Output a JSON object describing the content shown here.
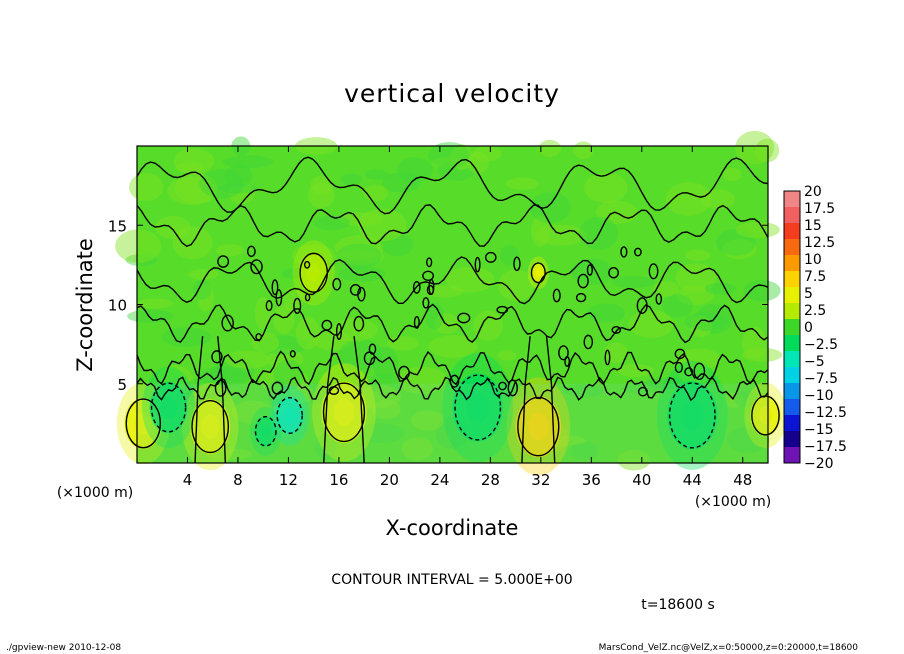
{
  "chart_data": {
    "type": "heatmap",
    "title": "vertical velocity",
    "xlabel": "X-coordinate",
    "ylabel": "Z-coordinate",
    "x_unit": "(×1000 m)",
    "y_unit": "(×1000 m)",
    "xlim": [
      0,
      50
    ],
    "ylim": [
      0,
      20
    ],
    "x_ticks": [
      "4",
      "8",
      "12",
      "16",
      "20",
      "24",
      "28",
      "32",
      "36",
      "40",
      "44",
      "48"
    ],
    "y_ticks": [
      "5",
      "10",
      "15"
    ],
    "colorbar": {
      "levels": [
        "20",
        "17.5",
        "15",
        "12.5",
        "10",
        "7.5",
        "5",
        "2.5",
        "0",
        "−2.5",
        "−5",
        "−7.5",
        "−10",
        "−12.5",
        "−15",
        "−17.5",
        "−20"
      ],
      "colors": [
        "#f08585",
        "#f06060",
        "#f43c1e",
        "#f86a10",
        "#fa9a00",
        "#fcd200",
        "#e6f000",
        "#b4eb00",
        "#3cd728",
        "#00dc5a",
        "#00e6b4",
        "#00d2e6",
        "#0a96e6",
        "#145aeb",
        "#0a14d2",
        "#14008c",
        "#6e14b4"
      ]
    },
    "features": [
      {
        "x": 0.5,
        "z": 2.5,
        "w": 1.5,
        "value": 5
      },
      {
        "x": 5.8,
        "z": 2.3,
        "w": 1.6,
        "value": 5
      },
      {
        "x": 10.2,
        "z": 2.0,
        "w": 0.9,
        "value": -2.5
      },
      {
        "x": 12.1,
        "z": 3.0,
        "w": 1.1,
        "value": -5
      },
      {
        "x": 16.4,
        "z": 3.2,
        "w": 1.8,
        "value": 5
      },
      {
        "x": 31.8,
        "z": 2.3,
        "w": 1.8,
        "value": 7.5
      },
      {
        "x": 31.8,
        "z": 12.0,
        "w": 0.6,
        "value": 5
      },
      {
        "x": 49.8,
        "z": 3.0,
        "w": 1.2,
        "value": 5
      },
      {
        "x": 14.0,
        "z": 12.0,
        "w": 1.2,
        "value": 2.5
      },
      {
        "x": 2.5,
        "z": 3.5,
        "w": 1.5,
        "value": -2.5
      },
      {
        "x": 27.0,
        "z": 3.5,
        "w": 2.0,
        "value": -2.5
      },
      {
        "x": 44.0,
        "z": 3.0,
        "w": 2.0,
        "value": -2.5
      }
    ],
    "contour_interval_text": "CONTOUR INTERVAL = 5.000E+00",
    "time_text": "t=18600 s"
  },
  "footer": {
    "left": "./gpview-new   2010-12-08",
    "right": "MarsCond_VelZ.nc@VelZ,x=0:50000,z=0:20000,t=18600"
  }
}
